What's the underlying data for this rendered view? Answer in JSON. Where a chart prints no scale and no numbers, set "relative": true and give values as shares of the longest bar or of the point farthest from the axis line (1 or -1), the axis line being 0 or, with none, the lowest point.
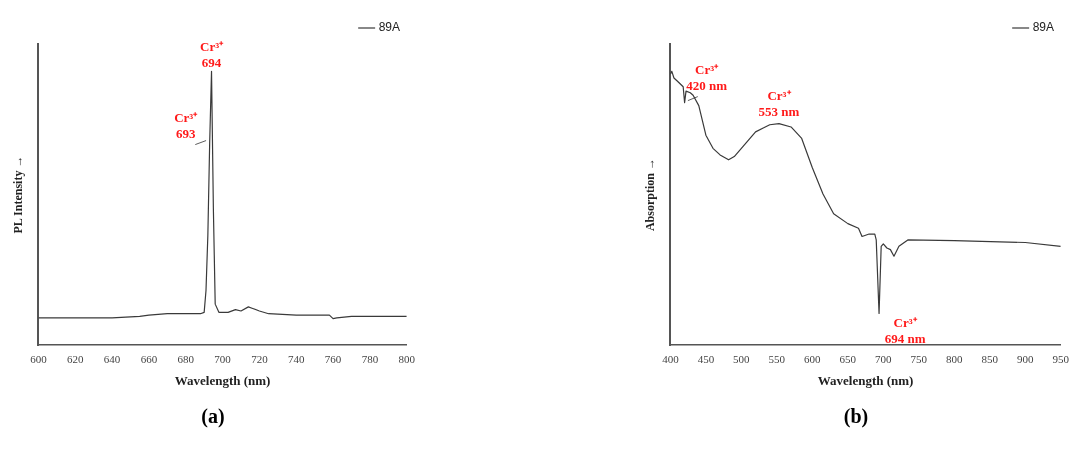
{
  "chart_data": [
    {
      "type": "line",
      "title": "(a)",
      "xlabel": "Wavelength (nm)",
      "ylabel": "PL Intensity →",
      "relative": true,
      "tick_labels": "x",
      "legend": "top right",
      "marker": "none",
      "grid": false,
      "xlim": [
        600,
        800
      ],
      "xticks": [
        600,
        620,
        640,
        660,
        680,
        700,
        720,
        740,
        760,
        780,
        800
      ],
      "series": [
        {
          "name": "89A",
          "color": "#3a3a3a",
          "x": [
            600,
            620,
            640,
            655,
            660,
            670,
            680,
            688,
            690,
            691,
            692,
            693,
            694,
            695,
            696,
            698,
            700,
            703,
            707,
            710,
            714,
            716,
            720,
            725,
            740,
            758,
            760,
            762,
            770,
            780,
            800
          ],
          "values": [
            0.1,
            0.1,
            0.1,
            0.105,
            0.11,
            0.115,
            0.115,
            0.115,
            0.12,
            0.2,
            0.4,
            0.74,
            1,
            0.5,
            0.15,
            0.12,
            0.12,
            0.12,
            0.13,
            0.125,
            0.14,
            0.135,
            0.125,
            0.115,
            0.11,
            0.11,
            0.097,
            0.1,
            0.105,
            0.105,
            0.105
          ]
        }
      ],
      "annotations": [
        {
          "text": "Cr³⁺\n694",
          "x": 694,
          "y": 1
        },
        {
          "text": "Cr³⁺\n693",
          "x": 693,
          "y": 0.74
        }
      ]
    },
    {
      "type": "line",
      "title": "(b)",
      "xlabel": "Wavelength (nm)",
      "ylabel": "Absorption →",
      "relative": true,
      "tick_labels": "x",
      "legend": "top right",
      "marker": "none",
      "grid": false,
      "xlim": [
        400,
        950
      ],
      "xticks": [
        400,
        450,
        500,
        550,
        600,
        650,
        700,
        750,
        800,
        850,
        900,
        950
      ],
      "series": [
        {
          "name": "89A",
          "color": "#3a3a3a",
          "x": [
            400,
            402,
            405,
            410,
            418,
            420,
            422,
            428,
            432,
            440,
            450,
            460,
            470,
            482,
            490,
            500,
            520,
            540,
            553,
            570,
            585,
            600,
            615,
            630,
            650,
            665,
            670,
            680,
            688,
            690,
            694,
            697,
            700,
            705,
            710,
            715,
            722,
            735,
            800,
            900,
            950
          ],
          "values": [
            0.99,
            1,
            0.976,
            0.964,
            0.944,
            0.886,
            0.928,
            0.922,
            0.913,
            0.875,
            0.767,
            0.719,
            0.695,
            0.677,
            0.689,
            0.719,
            0.779,
            0.805,
            0.809,
            0.797,
            0.755,
            0.648,
            0.552,
            0.48,
            0.444,
            0.427,
            0.397,
            0.406,
            0.406,
            0.385,
            0.116,
            0.361,
            0.37,
            0.355,
            0.349,
            0.325,
            0.361,
            0.385,
            0.382,
            0.375,
            0.361
          ]
        }
      ],
      "annotations": [
        {
          "text": "Cr³⁺\n420 nm",
          "x": 420,
          "y": 0.886
        },
        {
          "text": "Cr³⁺\n553 nm",
          "x": 553,
          "y": 0.809
        },
        {
          "text": "Cr³⁺\n694 nm",
          "x": 694,
          "y": 0.116
        }
      ]
    }
  ]
}
